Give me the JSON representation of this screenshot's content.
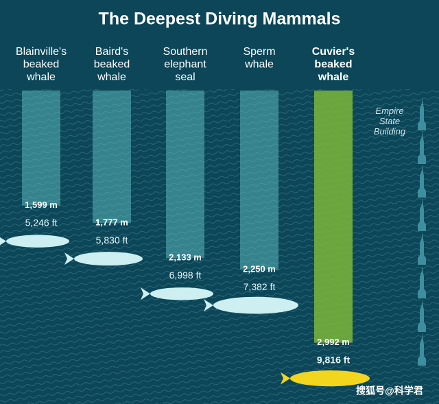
{
  "chart_data": {
    "type": "bar",
    "title": "The Deepest Diving Mammals",
    "categories": [
      "Blainville's\nbeaked\nwhale",
      "Baird's\nbeaked\nwhale",
      "Southern\nelephant\nseal",
      "Sperm\nwhale",
      "Cuvier's\nbeaked\nwhale"
    ],
    "values": [
      1599,
      1777,
      2133,
      2250,
      2992
    ],
    "value_labels": [
      "1,599 m",
      "1,777 m",
      "2,133 m",
      "2,250 m",
      "2,992 m"
    ],
    "feet_values": [
      5246,
      5830,
      6998,
      7382,
      9816
    ],
    "feet_value_labels": [
      "5,246 ft",
      "5,830 ft",
      "6,998 ft",
      "7,382 ft",
      "9,816 ft"
    ],
    "colors": [
      "#5ab7bb",
      "#5ab7bb",
      "#5ab7bb",
      "#5ab7bb",
      "#7bb63a"
    ],
    "label_colors": [
      "#ffffff",
      "#ffffff",
      "#ffffff",
      "#ffffff",
      "#e8e34a"
    ],
    "animal_colors": [
      "#cdeff1",
      "#cdeff1",
      "#cdeff1",
      "#cdeff1",
      "#f2d51d"
    ],
    "annotation": "Empire\nState\nBuilding"
  },
  "watermark": "搜狐号@科学君"
}
